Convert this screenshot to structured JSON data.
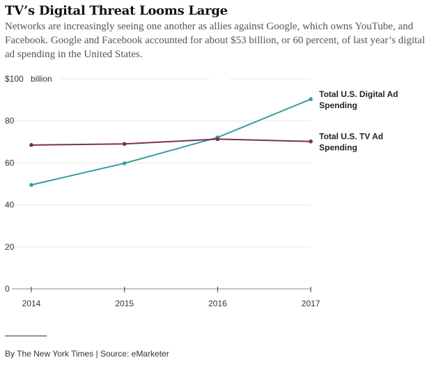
{
  "title": "TV’s Digital Threat Looms Large",
  "subtitle": "Networks are increasingly seeing one another as allies against Google, which owns YouTube, and Facebook. Google and Facebook accounted for about $53 billion, or 60 percent, of last year’s digital ad spending in the United States.",
  "credit": "By The New York Times | Source: eMarketer",
  "chart_data": {
    "type": "line",
    "title": "TV’s Digital Threat Looms Large",
    "xlabel": "",
    "ylabel": "billion",
    "x": [
      2014,
      2015,
      2016,
      2017
    ],
    "x_tick_labels": [
      "2014",
      "2015",
      "2016",
      "2017"
    ],
    "ylim": [
      0,
      100
    ],
    "y_ticks": [
      0,
      20,
      40,
      60,
      80,
      100
    ],
    "y_tick_labels": [
      "0",
      "20",
      "40",
      "60",
      "80",
      "$100"
    ],
    "y_unit": "billion",
    "grid": true,
    "series": [
      {
        "name": "Total U.S. Digital Ad Spending",
        "label_lines": [
          "Total U.S. Digital Ad",
          "Spending"
        ],
        "color": "#3a9b9e",
        "values": [
          49.5,
          59.8,
          72.1,
          90.3
        ]
      },
      {
        "name": "Total U.S. TV Ad Spending",
        "label_lines": [
          "Total U.S. TV Ad",
          "Spending"
        ],
        "color": "#7d2f52",
        "values": [
          68.5,
          69.0,
          71.3,
          70.2
        ]
      }
    ]
  }
}
